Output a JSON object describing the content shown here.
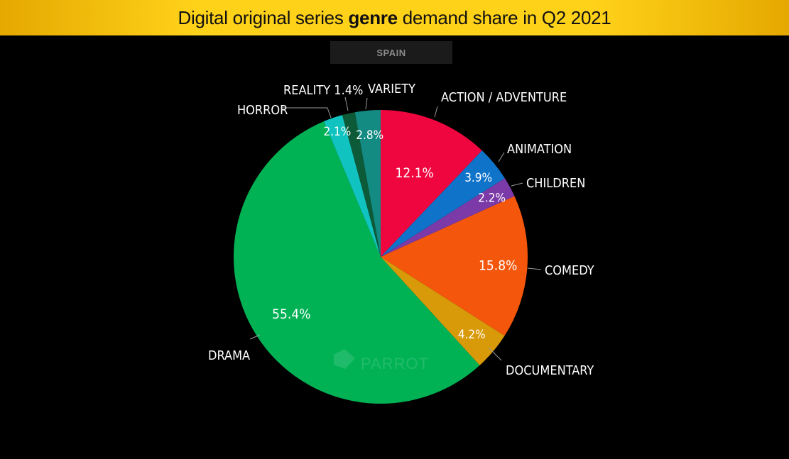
{
  "header": {
    "title_prefix": "Digital original series ",
    "title_bold": "genre",
    "title_suffix": " demand share in Q2 2021"
  },
  "region_tab": "SPAIN",
  "watermark": "PARROT",
  "colors": {
    "header_bg": "#ffd21a",
    "background": "#000000",
    "text": "#ffffff"
  },
  "chart_data": {
    "type": "pie",
    "title": "Digital original series genre demand share in Q2 2021",
    "subtitle": "SPAIN",
    "unit": "%",
    "start_angle_deg": 0,
    "direction": "clockwise",
    "slices": [
      {
        "label": "ACTION / ADVENTURE",
        "value": 12.1,
        "value_label": "12.1%",
        "color": "#f0063f"
      },
      {
        "label": "ANIMATION",
        "value": 3.9,
        "value_label": "3.9%",
        "color": "#0e73c9"
      },
      {
        "label": "CHILDREN",
        "value": 2.2,
        "value_label": "2.2%",
        "color": "#7b3aa8"
      },
      {
        "label": "COMEDY",
        "value": 15.8,
        "value_label": "15.8%",
        "color": "#f4560c"
      },
      {
        "label": "DOCUMENTARY",
        "value": 4.2,
        "value_label": "4.2%",
        "color": "#d99a0a"
      },
      {
        "label": "DRAMA",
        "value": 55.4,
        "value_label": "55.4%",
        "color": "#01b255"
      },
      {
        "label": "HORROR",
        "value": 2.1,
        "value_label": "2.1%",
        "color": "#11c3c0"
      },
      {
        "label": "REALITY 1.4%",
        "value": 1.4,
        "value_label": "",
        "color": "#0d5a38"
      },
      {
        "label": "VARIETY",
        "value": 2.8,
        "value_label": "2.8%",
        "color": "#138a82"
      }
    ]
  }
}
